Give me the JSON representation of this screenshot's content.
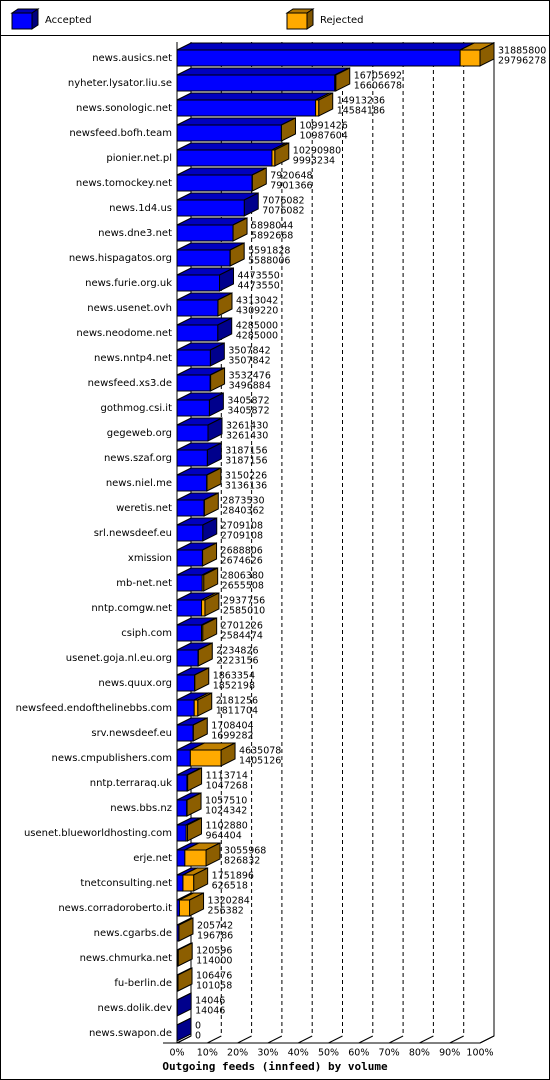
{
  "chart_data": {
    "type": "bar3d",
    "orientation": "horizontal",
    "title": "Outgoing feeds (innfeed) by volume",
    "categories": [
      "news.ausics.net",
      "nyheter.lysator.liu.se",
      "news.sonologic.net",
      "newsfeed.bofh.team",
      "pionier.net.pl",
      "news.tomockey.net",
      "news.1d4.us",
      "news.dne3.net",
      "news.hispagatos.org",
      "news.furie.org.uk",
      "news.usenet.ovh",
      "news.neodome.net",
      "news.nntp4.net",
      "newsfeed.xs3.de",
      "gothmog.csi.it",
      "gegeweb.org",
      "news.szaf.org",
      "news.niel.me",
      "weretis.net",
      "srl.newsdeef.eu",
      "xmission",
      "mb-net.net",
      "nntp.comgw.net",
      "csiph.com",
      "usenet.goja.nl.eu.org",
      "news.quux.org",
      "newsfeed.endofthelinebbs.com",
      "srv.newsdeef.eu",
      "news.cmpublishers.com",
      "nntp.terraraq.uk",
      "news.bbs.nz",
      "usenet.blueworldhosting.com",
      "erje.net",
      "tnetconsulting.net",
      "news.corradoroberto.it",
      "news.cgarbs.de",
      "news.chmurka.net",
      "fu-berlin.de",
      "news.dolik.dev",
      "news.swapon.de"
    ],
    "totals": [
      31885800,
      16705692,
      14913236,
      10991426,
      10290980,
      7920648,
      7076082,
      5898044,
      5591828,
      4473550,
      4313042,
      4285000,
      3507842,
      3532476,
      3405872,
      3261430,
      3187156,
      3150226,
      2873530,
      2709108,
      2688806,
      2806380,
      2937756,
      2701226,
      2234826,
      1863354,
      2181256,
      1708404,
      4635078,
      1113714,
      1057510,
      1102880,
      3055968,
      1751896,
      1320284,
      205742,
      120596,
      106476,
      14046,
      0
    ],
    "series": [
      {
        "name": "Accepted",
        "color": "#0000ff",
        "values": [
          29796278,
          16606678,
          14584186,
          10987604,
          9993234,
          7901366,
          7076082,
          5892668,
          5588006,
          4473550,
          4309220,
          4285000,
          3507842,
          3496884,
          3405872,
          3261430,
          3187156,
          3136136,
          2840362,
          2709108,
          2674626,
          2655508,
          2585010,
          2584474,
          2223156,
          1852198,
          1811704,
          1699282,
          1405126,
          1047268,
          1024342,
          964404,
          826832,
          626518,
          256382,
          196786,
          114000,
          101058,
          14046,
          0
        ]
      },
      {
        "name": "Rejected",
        "color": "#ffaa00"
      }
    ],
    "xlim": [
      0,
      100
    ],
    "xticks": [
      {
        "value": 0,
        "label": "0%"
      },
      {
        "value": 10,
        "label": "10%"
      },
      {
        "value": 20,
        "label": "20%"
      },
      {
        "value": 30,
        "label": "30%"
      },
      {
        "value": 40,
        "label": "40%"
      },
      {
        "value": 50,
        "label": "50%"
      },
      {
        "value": 60,
        "label": "60%"
      },
      {
        "value": 70,
        "label": "70%"
      },
      {
        "value": 80,
        "label": "80%"
      },
      {
        "value": 90,
        "label": "90%"
      },
      {
        "value": 100,
        "label": "100%"
      }
    ],
    "grid": true
  }
}
